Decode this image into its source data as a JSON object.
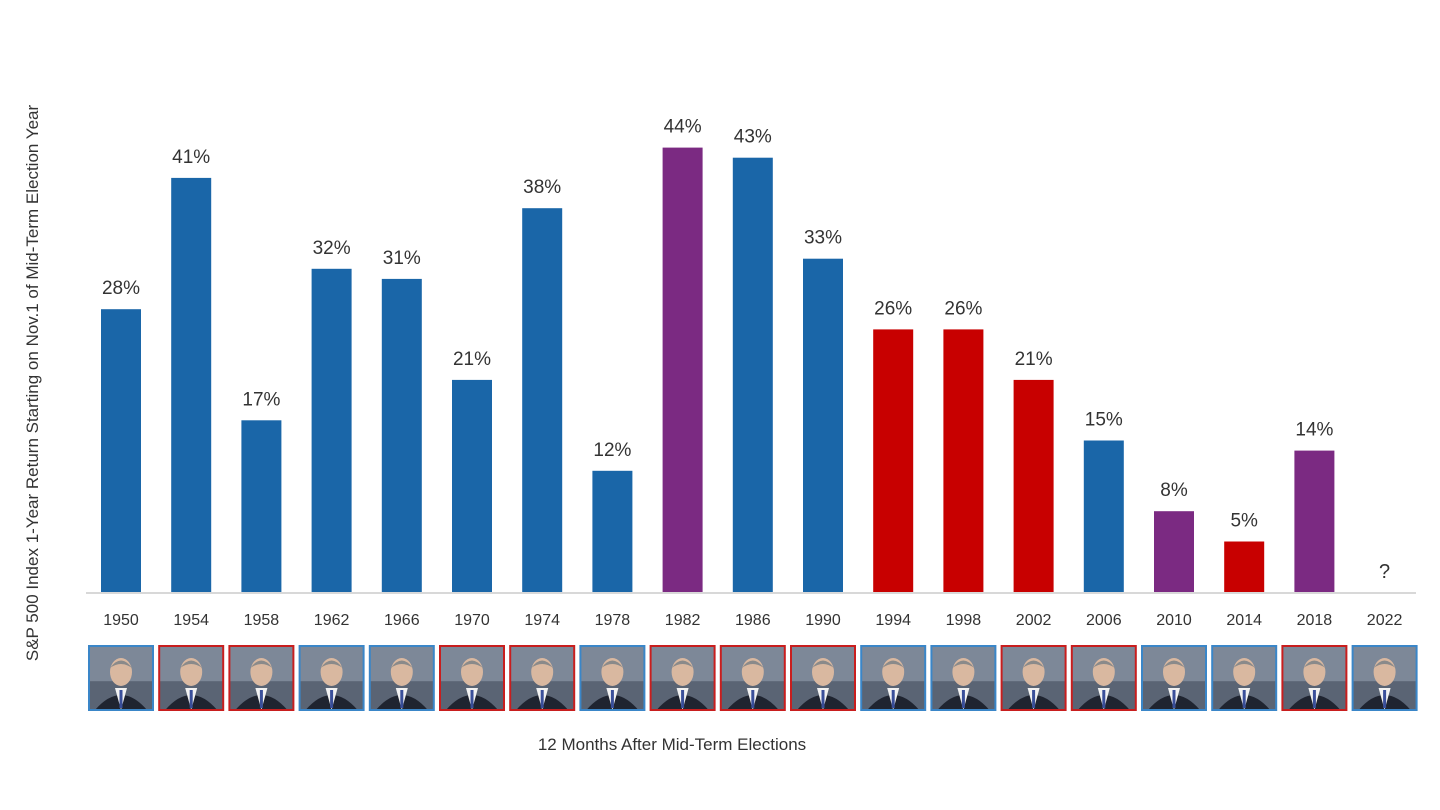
{
  "chart_data": {
    "type": "bar",
    "title": "",
    "xlabel": "12 Months After Mid-Term Elections",
    "ylabel": "S&P 500 Index 1-Year Return Starting on Nov.1 of Mid-Term Election Year",
    "ylim": [
      0,
      50
    ],
    "grid": false,
    "categories": [
      "1950",
      "1954",
      "1958",
      "1962",
      "1966",
      "1970",
      "1974",
      "1978",
      "1982",
      "1986",
      "1990",
      "1994",
      "1998",
      "2002",
      "2006",
      "2010",
      "2014",
      "2018",
      "2022"
    ],
    "values": [
      28,
      41,
      17,
      32,
      31,
      21,
      38,
      12,
      44,
      43,
      33,
      26,
      26,
      21,
      15,
      8,
      5,
      14,
      null
    ],
    "labels": [
      "28%",
      "41%",
      "17%",
      "32%",
      "31%",
      "21%",
      "38%",
      "12%",
      "44%",
      "43%",
      "33%",
      "26%",
      "26%",
      "21%",
      "15%",
      "8%",
      "5%",
      "14%",
      "?"
    ],
    "bar_colors": [
      "#1a66a8",
      "#1a66a8",
      "#1a66a8",
      "#1a66a8",
      "#1a66a8",
      "#1a66a8",
      "#1a66a8",
      "#1a66a8",
      "#7b2a82",
      "#1a66a8",
      "#1a66a8",
      "#c80000",
      "#c80000",
      "#c80000",
      "#1a66a8",
      "#7b2a82",
      "#c80000",
      "#7b2a82",
      "#1a66a8"
    ],
    "portrait_frame_colors": [
      "#3a86c8",
      "#c81e1e",
      "#c81e1e",
      "#3a86c8",
      "#3a86c8",
      "#c81e1e",
      "#c81e1e",
      "#3a86c8",
      "#c81e1e",
      "#c81e1e",
      "#c81e1e",
      "#3a86c8",
      "#3a86c8",
      "#c81e1e",
      "#c81e1e",
      "#3a86c8",
      "#3a86c8",
      "#c81e1e",
      "#3a86c8"
    ]
  }
}
